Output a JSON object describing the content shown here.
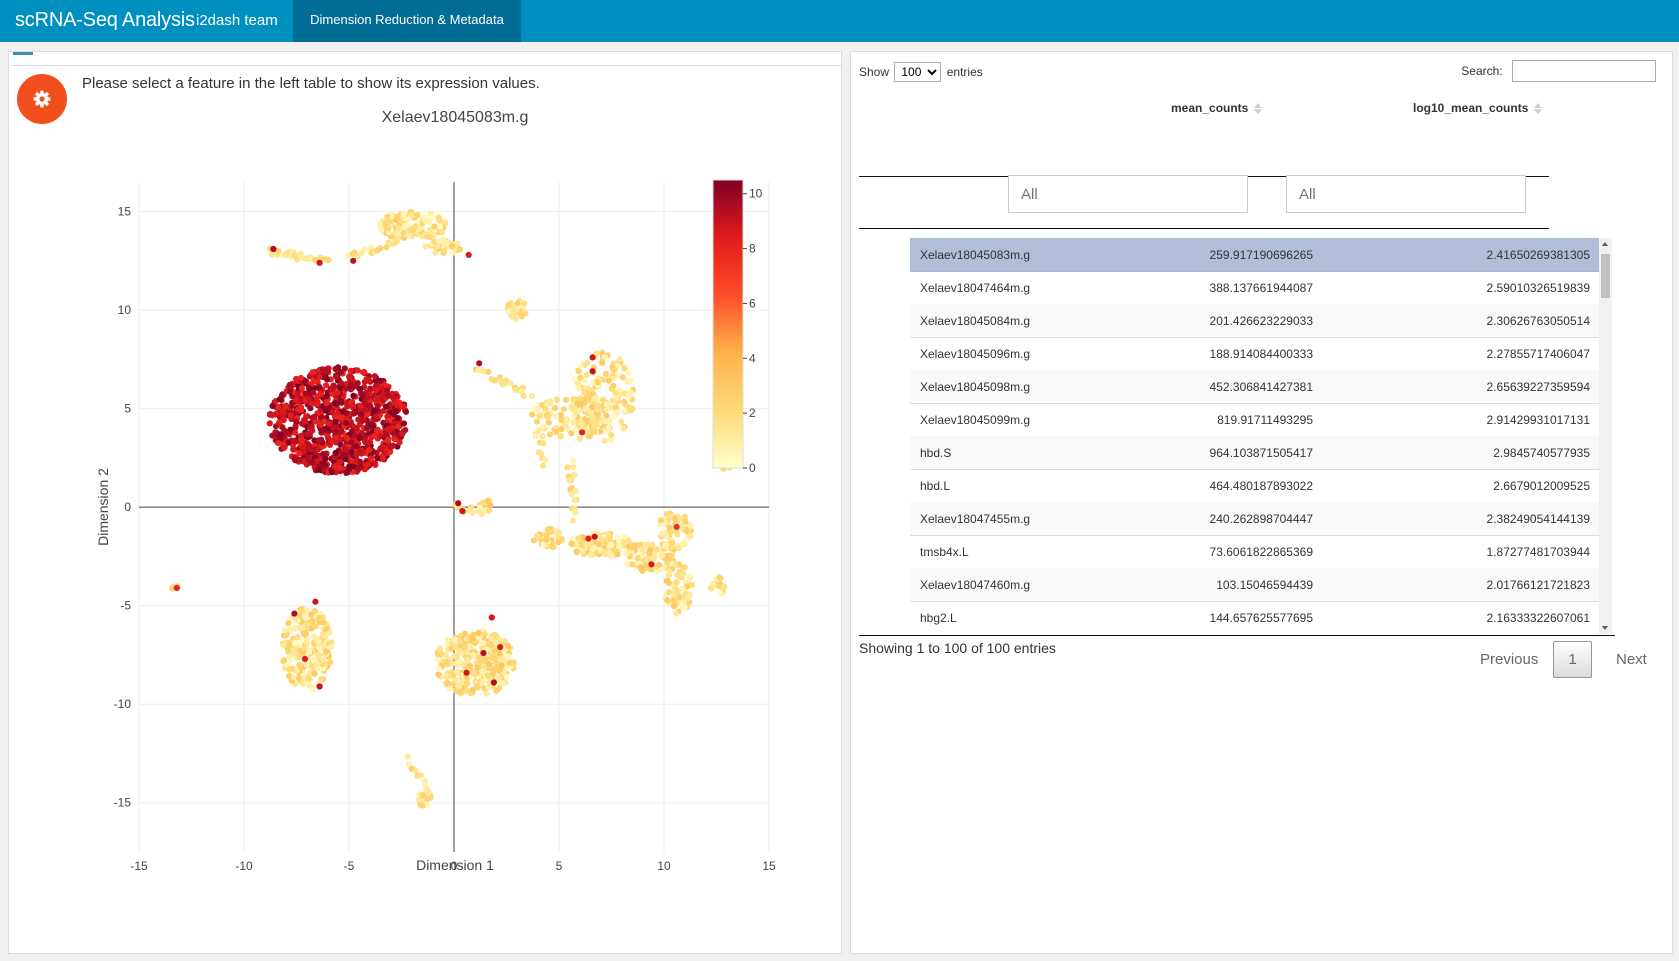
{
  "app": {
    "title": "scRNA-Seq Analysis",
    "team": "i2dash team",
    "active_tab": "Dimension Reduction & Metadata",
    "colors": {
      "navbar": "#0090bf",
      "active_tab": "#016d97",
      "gear_button": "#f24f1f",
      "selected_row": "#b0bed9"
    }
  },
  "left": {
    "settings_icon": "gear-icon",
    "hint": "Please select a feature in the left table to show its expression values."
  },
  "chart_data": {
    "type": "scatter",
    "title": "Xelaev18045083m.g",
    "xlabel": "Dimension 1",
    "ylabel": "Dimension 2",
    "xlim": [
      -15,
      15
    ],
    "ylim": [
      -17.5,
      16.5
    ],
    "xticks": [
      -15,
      -10,
      -5,
      0,
      5,
      10,
      15
    ],
    "yticks": [
      15,
      10,
      5,
      0,
      -5,
      -10,
      -15
    ],
    "colorbar": {
      "min": 0,
      "max": 10.5,
      "ticks": [
        10,
        8,
        6,
        4,
        2,
        0
      ],
      "colorscale": "YlOrRd"
    },
    "grid": true,
    "clusters": [
      {
        "cx": -5.5,
        "cy": 4.4,
        "rx": 3.3,
        "ry": 2.7,
        "n": 900,
        "val": 9.2,
        "spread": 1.4
      },
      {
        "cx": 7.1,
        "cy": 5.6,
        "rx": 1.5,
        "ry": 2.3,
        "n": 160,
        "val": 1.6,
        "spread": 1.3
      },
      {
        "cx": 5.4,
        "cy": 4.5,
        "rx": 1.8,
        "ry": 1.1,
        "n": 90,
        "val": 1.6,
        "spread": 1.3
      },
      {
        "cx": 4.5,
        "cy": -1.6,
        "rx": 0.7,
        "ry": 0.5,
        "n": 40,
        "val": 1.6,
        "spread": 1.3
      },
      {
        "cx": 7.0,
        "cy": -1.9,
        "rx": 1.5,
        "ry": 0.6,
        "n": 110,
        "val": 1.7,
        "spread": 1.4
      },
      {
        "cx": 9.3,
        "cy": -2.5,
        "rx": 1.3,
        "ry": 0.8,
        "n": 90,
        "val": 1.7,
        "spread": 1.4
      },
      {
        "cx": 10.5,
        "cy": -1.2,
        "rx": 0.8,
        "ry": 1.0,
        "n": 60,
        "val": 1.7,
        "spread": 1.4
      },
      {
        "cx": 10.7,
        "cy": -4.2,
        "rx": 0.7,
        "ry": 1.3,
        "n": 60,
        "val": 1.7,
        "spread": 1.4
      },
      {
        "cx": 12.6,
        "cy": -4.0,
        "rx": 0.4,
        "ry": 0.5,
        "n": 16,
        "val": 1.5,
        "spread": 1.2
      },
      {
        "cx": 1.0,
        "cy": -7.9,
        "rx": 1.9,
        "ry": 1.7,
        "n": 300,
        "val": 1.7,
        "spread": 1.4
      },
      {
        "cx": -7.0,
        "cy": -7.2,
        "rx": 1.2,
        "ry": 2.1,
        "n": 220,
        "val": 1.7,
        "spread": 1.4
      },
      {
        "cx": -2.0,
        "cy": 14.3,
        "rx": 1.7,
        "ry": 0.7,
        "n": 120,
        "val": 1.5,
        "spread": 1.3
      },
      {
        "cx": -0.5,
        "cy": 13.2,
        "rx": 0.9,
        "ry": 0.4,
        "n": 40,
        "val": 1.6,
        "spread": 1.3
      },
      {
        "cx": 3.0,
        "cy": 10.0,
        "rx": 0.5,
        "ry": 0.5,
        "n": 25,
        "val": 1.6,
        "spread": 1.2
      },
      {
        "cx": 13.0,
        "cy": 2.4,
        "rx": 0.3,
        "ry": 0.6,
        "n": 14,
        "val": 1.5,
        "spread": 1.2
      },
      {
        "cx": 1.6,
        "cy": 0.1,
        "rx": 0.4,
        "ry": 0.3,
        "n": 16,
        "val": 2.0,
        "spread": 1.5
      },
      {
        "cx": -1.3,
        "cy": -14.8,
        "rx": 0.4,
        "ry": 0.5,
        "n": 20,
        "val": 1.6,
        "spread": 1.2
      },
      {
        "cx": -13.3,
        "cy": -4.0,
        "rx": 0.2,
        "ry": 0.2,
        "n": 4,
        "val": 2.0,
        "spread": 1.2
      }
    ],
    "strands": [
      {
        "x1": -8.7,
        "y1": 13.0,
        "x2": -6.0,
        "y2": 12.5,
        "n": 28,
        "val": 1.6
      },
      {
        "x1": -5.0,
        "y1": 12.7,
        "x2": -2.5,
        "y2": 13.6,
        "n": 18,
        "val": 1.6
      },
      {
        "x1": 1.2,
        "y1": 7.0,
        "x2": 3.6,
        "y2": 5.7,
        "n": 20,
        "val": 1.6
      },
      {
        "x1": 5.5,
        "y1": 2.2,
        "x2": 5.8,
        "y2": -0.6,
        "n": 18,
        "val": 1.6
      },
      {
        "x1": 4.0,
        "y1": 3.8,
        "x2": 4.3,
        "y2": 2.2,
        "n": 10,
        "val": 1.6
      },
      {
        "x1": -2.1,
        "y1": -12.8,
        "x2": -1.4,
        "y2": -14.2,
        "n": 10,
        "val": 1.6
      },
      {
        "x1": 0.0,
        "y1": 0.1,
        "x2": 1.3,
        "y2": -0.4,
        "n": 10,
        "val": 1.8
      }
    ],
    "outliers": [
      {
        "x": -8.6,
        "y": 13.1,
        "v": 9.5
      },
      {
        "x": -6.4,
        "y": 12.4,
        "v": 8.8
      },
      {
        "x": -4.8,
        "y": 12.5,
        "v": 9.2
      },
      {
        "x": 0.7,
        "y": 12.8,
        "v": 8.5
      },
      {
        "x": 1.2,
        "y": 7.3,
        "v": 9.4
      },
      {
        "x": 6.6,
        "y": 7.6,
        "v": 8.7
      },
      {
        "x": 6.6,
        "y": 6.9,
        "v": 9.0
      },
      {
        "x": 6.1,
        "y": 3.8,
        "v": 8.2
      },
      {
        "x": 0.2,
        "y": 0.2,
        "v": 9.6
      },
      {
        "x": 0.4,
        "y": -0.2,
        "v": 8.8
      },
      {
        "x": 6.7,
        "y": -1.5,
        "v": 9.0
      },
      {
        "x": 6.4,
        "y": -1.6,
        "v": 8.2
      },
      {
        "x": 9.4,
        "y": -2.9,
        "v": 8.5
      },
      {
        "x": 10.6,
        "y": -1.0,
        "v": 7.5
      },
      {
        "x": 1.4,
        "y": -7.4,
        "v": 9.1
      },
      {
        "x": 0.6,
        "y": -8.4,
        "v": 8.7
      },
      {
        "x": 1.9,
        "y": -8.9,
        "v": 9.3
      },
      {
        "x": 2.2,
        "y": -7.1,
        "v": 8.6
      },
      {
        "x": -7.6,
        "y": -5.4,
        "v": 9.6
      },
      {
        "x": -6.6,
        "y": -4.8,
        "v": 8.9
      },
      {
        "x": -7.1,
        "y": -7.7,
        "v": 8.4
      },
      {
        "x": -6.4,
        "y": -9.1,
        "v": 9.0
      },
      {
        "x": -13.2,
        "y": -4.1,
        "v": 8.0
      },
      {
        "x": 1.8,
        "y": -5.6,
        "v": 8.6
      }
    ]
  },
  "table": {
    "show_label": "Show",
    "entries_label": "entries",
    "length_value": "100",
    "search_label": "Search:",
    "search_value": "",
    "columns": [
      "mean_counts",
      "log10_mean_counts"
    ],
    "filter_placeholders": [
      "All",
      "All"
    ],
    "rows": [
      {
        "gene": "Xelaev18045083m.g",
        "mean_counts": "259.917190696265",
        "log10_mean_counts": "2.41650269381305",
        "selected": true
      },
      {
        "gene": "Xelaev18047464m.g",
        "mean_counts": "388.137661944087",
        "log10_mean_counts": "2.59010326519839"
      },
      {
        "gene": "Xelaev18045084m.g",
        "mean_counts": "201.426623229033",
        "log10_mean_counts": "2.30626763050514"
      },
      {
        "gene": "Xelaev18045096m.g",
        "mean_counts": "188.914084400333",
        "log10_mean_counts": "2.27855717406047"
      },
      {
        "gene": "Xelaev18045098m.g",
        "mean_counts": "452.306841427381",
        "log10_mean_counts": "2.65639227359594"
      },
      {
        "gene": "Xelaev18045099m.g",
        "mean_counts": "819.91711493295",
        "log10_mean_counts": "2.91429931017131"
      },
      {
        "gene": "hbd.S",
        "mean_counts": "964.103871505417",
        "log10_mean_counts": "2.9845740577935"
      },
      {
        "gene": "hbd.L",
        "mean_counts": "464.480187893022",
        "log10_mean_counts": "2.6679012009525"
      },
      {
        "gene": "Xelaev18047455m.g",
        "mean_counts": "240.262898704447",
        "log10_mean_counts": "2.38249054144139"
      },
      {
        "gene": "tmsb4x.L",
        "mean_counts": "73.6061822865369",
        "log10_mean_counts": "1.87277481703944"
      },
      {
        "gene": "Xelaev18047460m.g",
        "mean_counts": "103.15046594439",
        "log10_mean_counts": "2.01766121721823"
      },
      {
        "gene": "hbg2.L",
        "mean_counts": "144.657625577695",
        "log10_mean_counts": "2.16333322607061"
      }
    ],
    "info": "Showing 1 to 100 of 100 entries",
    "pagination": {
      "previous": "Previous",
      "page": "1",
      "next": "Next"
    }
  }
}
